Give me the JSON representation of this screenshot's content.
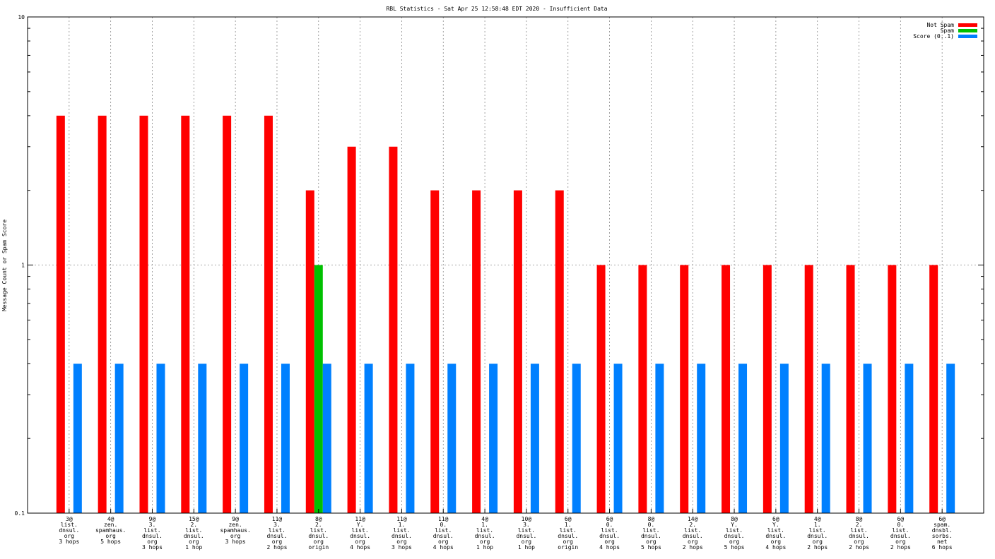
{
  "chart_data": {
    "type": "bar",
    "title": "RBL Statistics - Sat Apr 25 12:58:48 EDT 2020 - Insufficient Data",
    "ylabel": "Message Count or Spam Score",
    "xlabel": "",
    "yscale": "log",
    "ylim": [
      0.1,
      10
    ],
    "yticks": [
      "0.1",
      "1",
      "10"
    ],
    "grid": true,
    "legend_position": "top-right",
    "colors": {
      "Not Spam": "#ff0000",
      "Spam": "#00c000",
      "Score (0..1)": "#0080ff"
    },
    "categories": [
      "3@|list.|dnsul.|org|3 hops",
      "4@|zen.|spamhaus.|org|5 hops",
      "9@|3.|list.|dnsul.|org|3 hops",
      "15@|2.|list.|dnsul.|org|1 hop",
      "9@|zen.|spamhaus.|org|3 hops",
      "11@|3.|list.|dnsul.|org|2 hops",
      "8@|2.|list.|dnsul.|org|origin",
      "11@|Y.|list.|dnsul.|org|4 hops",
      "11@|1.|list.|dnsul.|org|3 hops",
      "11@|0.|list.|dnsul.|org|4 hops",
      "4@|1.|list.|dnsul.|org|1 hop",
      "10@|3.|list.|dnsul.|org|1 hop",
      "6@|1.|list.|dnsul.|org|origin",
      "6@|0.|list.|dnsul.|org|4 hops",
      "8@|0.|list.|dnsul.|org|5 hops",
      "14@|2.|list.|dnsul.|org|2 hops",
      "8@|Y.|list.|dnsul.|org|5 hops",
      "6@|Y.|list.|dnsul.|org|4 hops",
      "4@|1.|list.|dnsul.|org|2 hops",
      "8@|2.|list.|dnsul.|org|2 hops",
      "6@|0.|list.|dnsul.|org|2 hops",
      "6@|spam.|dnsbl.|sorbs.|net|6 hops"
    ],
    "series": [
      {
        "name": "Not Spam",
        "values": [
          4,
          4,
          4,
          4,
          4,
          4,
          2,
          3,
          3,
          2,
          2,
          2,
          2,
          1,
          1,
          1,
          1,
          1,
          1,
          1,
          1,
          1
        ]
      },
      {
        "name": "Spam",
        "values": [
          0,
          0,
          0,
          0,
          0,
          0,
          1,
          0,
          0,
          0,
          0,
          0,
          0,
          0,
          0,
          0,
          0,
          0,
          0,
          0,
          0,
          0
        ]
      },
      {
        "name": "Score (0..1)",
        "values": [
          0.4,
          0.4,
          0.4,
          0.4,
          0.4,
          0.4,
          0.4,
          0.4,
          0.4,
          0.4,
          0.4,
          0.4,
          0.4,
          0.4,
          0.4,
          0.4,
          0.4,
          0.4,
          0.4,
          0.4,
          0.4,
          0.4
        ]
      }
    ]
  }
}
